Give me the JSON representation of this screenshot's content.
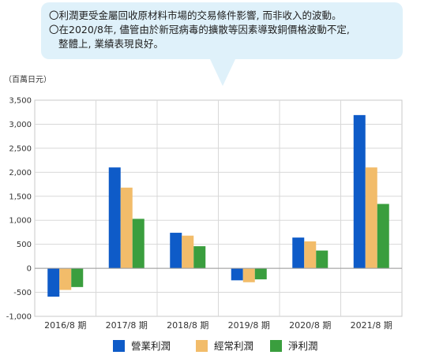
{
  "callout": {
    "line1": "〇利潤更受金屬回收原材料市場的交易條件影響, 而非收入的波動。",
    "line2": "〇在2020/8年, 儘管由於新冠病毒的擴散等因素導致銅價格波動不定,",
    "line3": "整體上, 業績表現良好。"
  },
  "chart_data": {
    "type": "bar",
    "unit_label": "（百萬日元）",
    "categories": [
      "2016/8 期",
      "2017/8 期",
      "2018/8 期",
      "2019/8 期",
      "2020/8 期",
      "2021/8 期"
    ],
    "series": [
      {
        "name": "營業利潤",
        "color": "#0e5bc8",
        "values": [
          -590,
          2100,
          740,
          -250,
          640,
          3190
        ]
      },
      {
        "name": "經常利潤",
        "color": "#f2bc6a",
        "values": [
          -450,
          1680,
          680,
          -290,
          560,
          2100
        ]
      },
      {
        "name": "淨利潤",
        "color": "#3a9e3e",
        "values": [
          -390,
          1030,
          460,
          -230,
          370,
          1340
        ]
      }
    ],
    "yticks": [
      "3,500",
      "3,000",
      "2,500",
      "2,000",
      "1,500",
      "1,000",
      "500",
      "0",
      "-500",
      "-1,000"
    ],
    "ylim": [
      -1000,
      3500
    ],
    "ytick_step": 500,
    "grid": true,
    "legend_position": "bottom-center"
  }
}
